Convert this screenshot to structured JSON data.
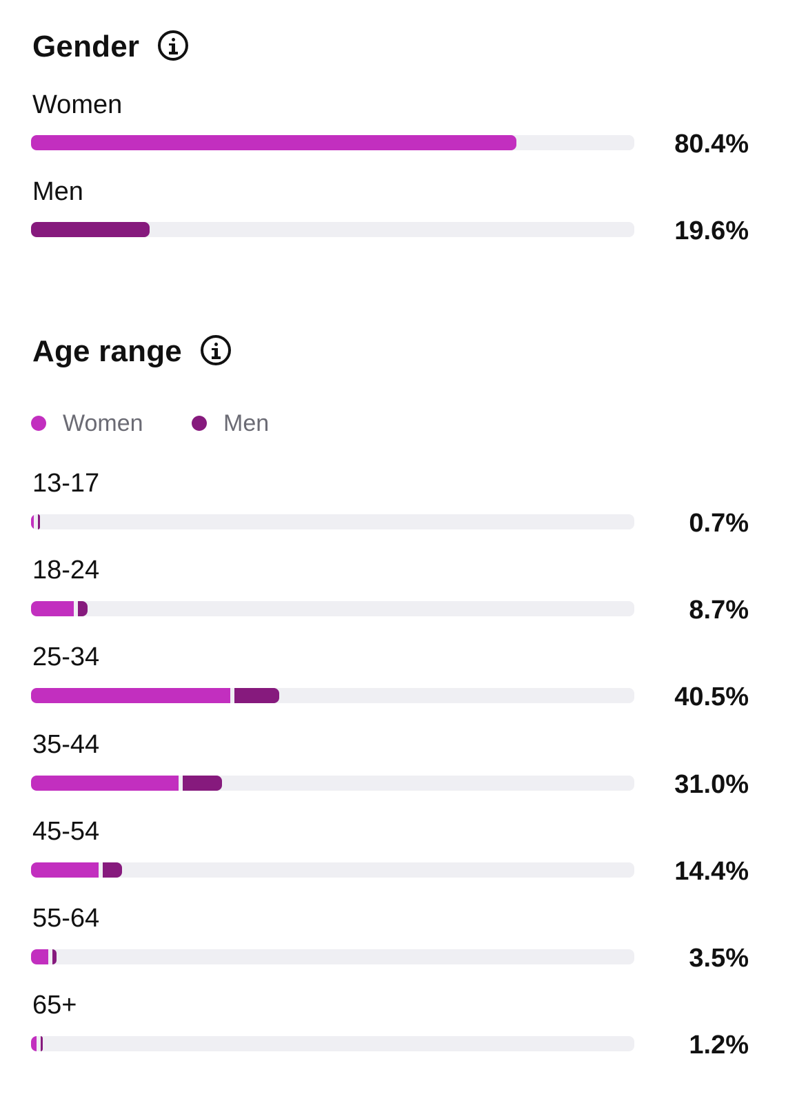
{
  "gender": {
    "title": "Gender",
    "rows": [
      {
        "label": "Women",
        "value_text": "80.4%",
        "value": 80.4
      },
      {
        "label": "Men",
        "value_text": "19.6%",
        "value": 19.6
      }
    ]
  },
  "age": {
    "title": "Age range",
    "legend": [
      {
        "label": "Women"
      },
      {
        "label": "Men"
      }
    ],
    "rows": [
      {
        "label": "13-17",
        "value_text": "0.7%",
        "total": 0.7,
        "women": 0.5,
        "men": 0.2
      },
      {
        "label": "18-24",
        "value_text": "8.7%",
        "total": 8.7,
        "women": 7.1,
        "men": 1.6
      },
      {
        "label": "25-34",
        "value_text": "40.5%",
        "total": 40.5,
        "women": 33.0,
        "men": 7.5
      },
      {
        "label": "35-44",
        "value_text": "31.0%",
        "total": 31.0,
        "women": 24.4,
        "men": 6.6
      },
      {
        "label": "45-54",
        "value_text": "14.4%",
        "total": 14.4,
        "women": 11.2,
        "men": 3.2
      },
      {
        "label": "55-64",
        "value_text": "3.5%",
        "total": 3.5,
        "women": 2.8,
        "men": 0.7
      },
      {
        "label": "65+",
        "value_text": "1.2%",
        "total": 1.2,
        "women": 0.9,
        "men": 0.3
      }
    ]
  },
  "colors": {
    "women": "#c22fbf",
    "men": "#861a7d",
    "track": "#efeff3",
    "text": "#111111",
    "legend_text": "#6b6b74"
  },
  "icons": {
    "gender_info": "info-icon",
    "age_info": "info-icon"
  },
  "chart_data": [
    {
      "type": "bar",
      "title": "Gender",
      "categories": [
        "Women",
        "Men"
      ],
      "values": [
        80.4,
        19.6
      ],
      "unit": "%",
      "xlim": [
        0,
        100
      ]
    },
    {
      "type": "bar",
      "title": "Age range",
      "categories": [
        "13-17",
        "18-24",
        "25-34",
        "35-44",
        "45-54",
        "55-64",
        "65+"
      ],
      "totals": [
        0.7,
        8.7,
        40.5,
        31.0,
        14.4,
        3.5,
        1.2
      ],
      "series": [
        {
          "name": "Women",
          "values": [
            0.5,
            7.1,
            33.0,
            24.4,
            11.2,
            2.8,
            0.9
          ]
        },
        {
          "name": "Men",
          "values": [
            0.2,
            1.6,
            7.5,
            6.6,
            3.2,
            0.7,
            0.3
          ]
        }
      ],
      "unit": "%",
      "xlim": [
        0,
        100
      ],
      "legend": "top-left"
    }
  ]
}
